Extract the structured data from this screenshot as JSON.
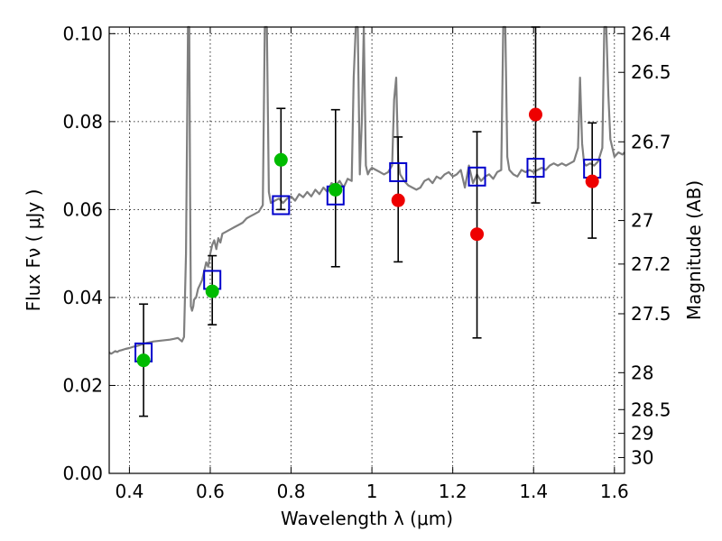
{
  "chart_data": {
    "type": "scatter",
    "xlabel": "Wavelength  λ (μm)",
    "ylabel": "Flux  Fν  ( μJy )",
    "y2label": "Magnitude (AB)",
    "xlim": [
      0.35,
      1.625
    ],
    "ylim": [
      0.0,
      0.1015
    ],
    "x_ticks": [
      0.4,
      0.6,
      0.8,
      1.0,
      1.2,
      1.4,
      1.6
    ],
    "x_tick_labels": [
      "0.4",
      "0.6",
      "0.8",
      "1",
      "1.2",
      "1.4",
      "1.6"
    ],
    "y_ticks": [
      0.0,
      0.02,
      0.04,
      0.06,
      0.08,
      0.1
    ],
    "y_tick_labels": [
      "0.00",
      "0.02",
      "0.04",
      "0.06",
      "0.08",
      "0.10"
    ],
    "y2_ticks": [
      {
        "flux": 0.1,
        "label": "26.4"
      },
      {
        "flux": 0.0912,
        "label": "26.5"
      },
      {
        "flux": 0.0754,
        "label": "26.7"
      },
      {
        "flux": 0.0575,
        "label": "27"
      },
      {
        "flux": 0.0476,
        "label": "27.2"
      },
      {
        "flux": 0.0363,
        "label": "27.5"
      },
      {
        "flux": 0.0229,
        "label": "28"
      },
      {
        "flux": 0.0145,
        "label": "28.5"
      },
      {
        "flux": 0.0091,
        "label": "29"
      },
      {
        "flux": 0.0036,
        "label": "30"
      }
    ],
    "grid": true,
    "colors": {
      "spectrum": "#7f7f7f",
      "model_squares": "#0000cc",
      "green_points": "#00bb00",
      "red_points": "#ee0000",
      "error_bars": "#000000"
    },
    "series": [
      {
        "kind": "line",
        "x": [
          0.35,
          0.355,
          0.36,
          0.365,
          0.37,
          0.375,
          0.38,
          0.39,
          0.4,
          0.41,
          0.42,
          0.43,
          0.44,
          0.45,
          0.46,
          0.47,
          0.48,
          0.49,
          0.5,
          0.51,
          0.52,
          0.53,
          0.535,
          0.54,
          0.545,
          0.548,
          0.55,
          0.552,
          0.555,
          0.558,
          0.56,
          0.565,
          0.57,
          0.575,
          0.58,
          0.585,
          0.59,
          0.595,
          0.6,
          0.605,
          0.61,
          0.615,
          0.62,
          0.625,
          0.63,
          0.64,
          0.65,
          0.66,
          0.67,
          0.68,
          0.69,
          0.7,
          0.71,
          0.72,
          0.73,
          0.735,
          0.74,
          0.745,
          0.75,
          0.76,
          0.77,
          0.78,
          0.79,
          0.8,
          0.81,
          0.82,
          0.83,
          0.84,
          0.85,
          0.86,
          0.87,
          0.88,
          0.89,
          0.9,
          0.91,
          0.92,
          0.93,
          0.94,
          0.95,
          0.955,
          0.96,
          0.965,
          0.97,
          0.975,
          0.98,
          0.985,
          0.99,
          0.995,
          1.0,
          1.01,
          1.02,
          1.03,
          1.04,
          1.05,
          1.055,
          1.06,
          1.065,
          1.07,
          1.08,
          1.09,
          1.1,
          1.11,
          1.12,
          1.13,
          1.14,
          1.15,
          1.16,
          1.17,
          1.18,
          1.19,
          1.2,
          1.21,
          1.22,
          1.23,
          1.24,
          1.25,
          1.26,
          1.27,
          1.28,
          1.29,
          1.3,
          1.31,
          1.32,
          1.325,
          1.33,
          1.335,
          1.34,
          1.35,
          1.36,
          1.37,
          1.38,
          1.39,
          1.4,
          1.41,
          1.42,
          1.43,
          1.44,
          1.45,
          1.46,
          1.47,
          1.48,
          1.49,
          1.5,
          1.51,
          1.515,
          1.52,
          1.525,
          1.53,
          1.54,
          1.55,
          1.56,
          1.57,
          1.575,
          1.58,
          1.585,
          1.59,
          1.6,
          1.61,
          1.62,
          1.625
        ],
        "y": [
          0.0275,
          0.0272,
          0.0275,
          0.0278,
          0.0276,
          0.0279,
          0.028,
          0.0283,
          0.0285,
          0.0288,
          0.029,
          0.0293,
          0.0296,
          0.0298,
          0.03,
          0.0301,
          0.0302,
          0.0303,
          0.0304,
          0.0306,
          0.0308,
          0.03,
          0.031,
          0.05,
          0.1015,
          0.1015,
          0.065,
          0.038,
          0.037,
          0.038,
          0.0395,
          0.04,
          0.042,
          0.043,
          0.044,
          0.046,
          0.048,
          0.047,
          0.05,
          0.052,
          0.053,
          0.051,
          0.0535,
          0.0525,
          0.0545,
          0.055,
          0.0555,
          0.056,
          0.0565,
          0.057,
          0.058,
          0.0585,
          0.059,
          0.0595,
          0.061,
          0.1015,
          0.1015,
          0.064,
          0.0615,
          0.062,
          0.0625,
          0.0615,
          0.0625,
          0.063,
          0.062,
          0.0635,
          0.0628,
          0.064,
          0.063,
          0.0645,
          0.0635,
          0.065,
          0.064,
          0.066,
          0.0655,
          0.0665,
          0.065,
          0.067,
          0.0665,
          0.09,
          0.1015,
          0.1015,
          0.068,
          0.08,
          0.1015,
          0.07,
          0.068,
          0.069,
          0.0695,
          0.069,
          0.0685,
          0.068,
          0.0685,
          0.07,
          0.085,
          0.09,
          0.071,
          0.068,
          0.0665,
          0.0655,
          0.065,
          0.0645,
          0.065,
          0.0665,
          0.067,
          0.066,
          0.0675,
          0.067,
          0.068,
          0.0685,
          0.0675,
          0.068,
          0.069,
          0.065,
          0.07,
          0.066,
          0.068,
          0.0665,
          0.0675,
          0.068,
          0.067,
          0.0685,
          0.069,
          0.1015,
          0.1015,
          0.072,
          0.069,
          0.068,
          0.0675,
          0.069,
          0.0685,
          0.069,
          0.0685,
          0.069,
          0.0695,
          0.069,
          0.07,
          0.0705,
          0.07,
          0.0705,
          0.07,
          0.0705,
          0.071,
          0.074,
          0.09,
          0.075,
          0.0705,
          0.07,
          0.0705,
          0.07,
          0.071,
          0.074,
          0.1015,
          0.1015,
          0.086,
          0.076,
          0.072,
          0.073,
          0.0725,
          0.073
        ]
      },
      {
        "kind": "model_squares",
        "x": [
          0.435,
          0.605,
          0.775,
          0.91,
          1.065,
          1.26,
          1.405,
          1.545
        ],
        "y": [
          0.0275,
          0.044,
          0.061,
          0.0632,
          0.0685,
          0.0675,
          0.0695,
          0.0693
        ]
      },
      {
        "kind": "green_points",
        "x": [
          0.435,
          0.605,
          0.775,
          0.91
        ],
        "y": [
          0.0257,
          0.0414,
          0.0713,
          0.0645
        ]
      },
      {
        "kind": "red_points",
        "x": [
          1.065,
          1.26,
          1.405,
          1.545
        ],
        "y": [
          0.0621,
          0.0544,
          0.0816,
          0.0664
        ]
      },
      {
        "kind": "error_bars",
        "x": [
          0.435,
          0.605,
          0.775,
          0.91,
          1.065,
          1.26,
          1.405,
          1.545
        ],
        "ylow": [
          0.013,
          0.0338,
          0.06,
          0.047,
          0.0481,
          0.0308,
          0.0615,
          0.0535
        ],
        "yhigh": [
          0.0385,
          0.0495,
          0.083,
          0.0827,
          0.0765,
          0.0777,
          0.1015,
          0.0797
        ]
      }
    ]
  }
}
